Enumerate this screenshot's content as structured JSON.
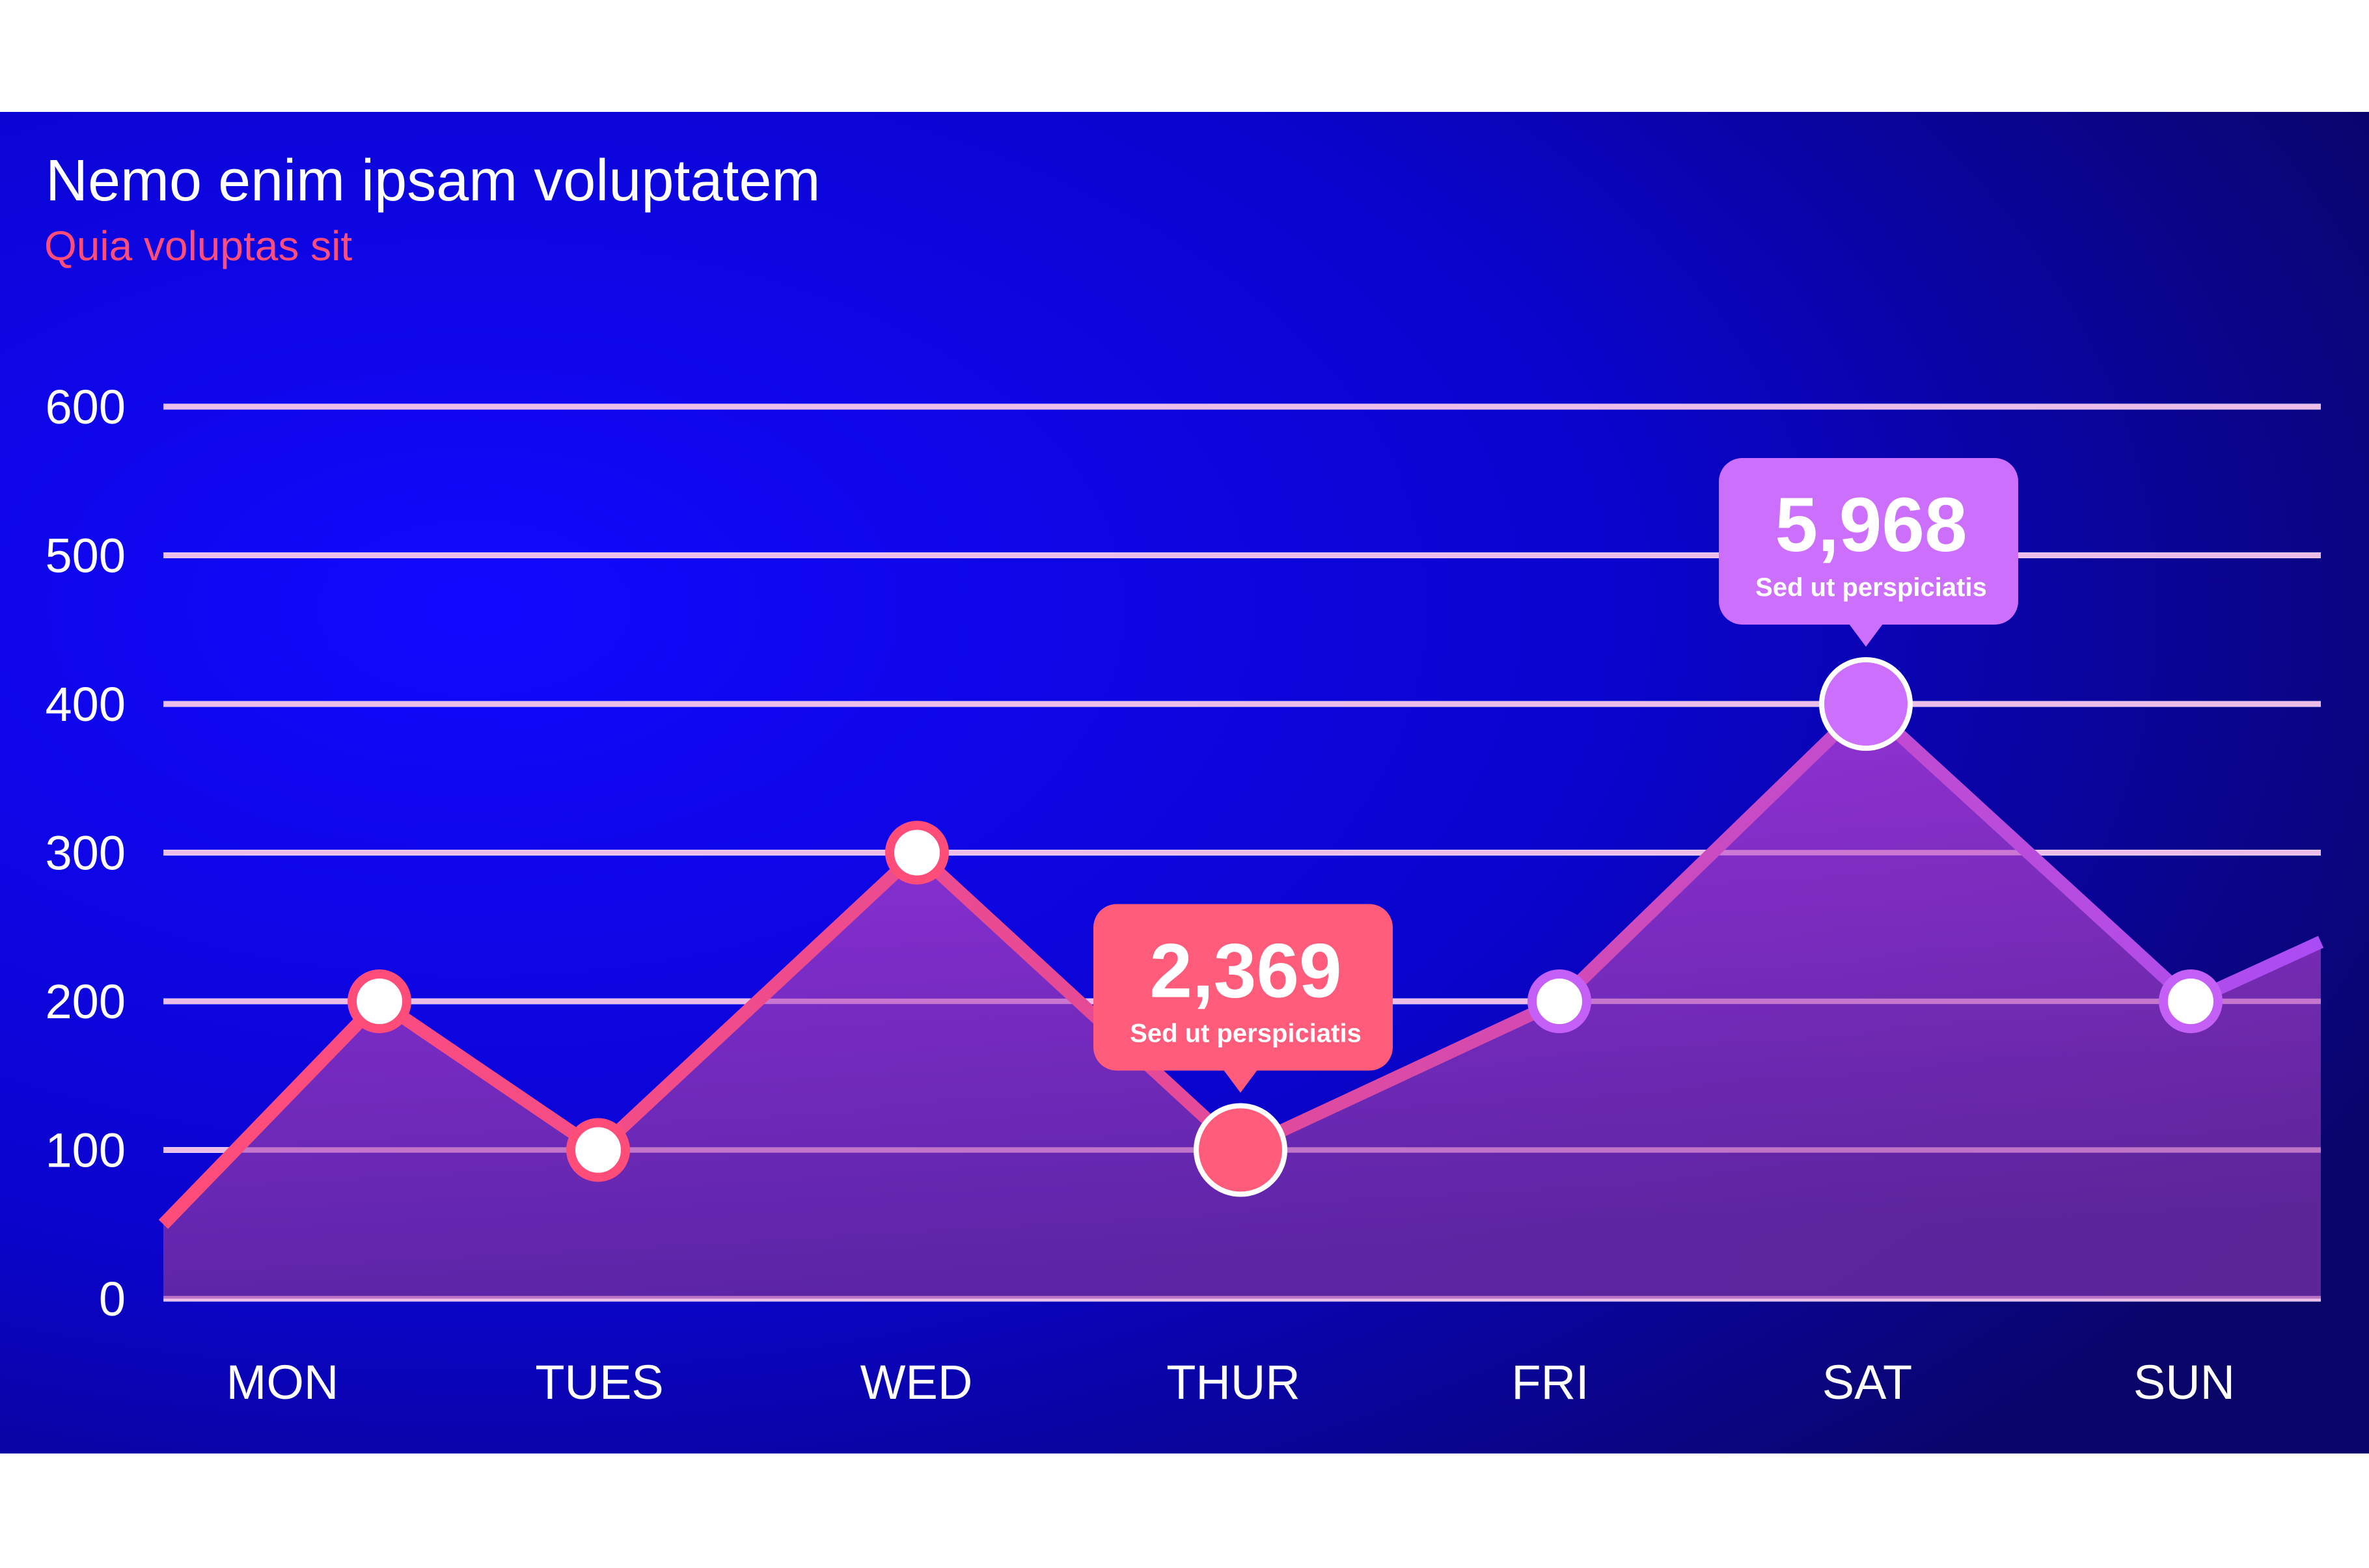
{
  "chart_data": {
    "type": "line",
    "title": "Nemo enim ipsam voluptatem",
    "subtitle": "Quia voluptas sit",
    "categories": [
      "MON",
      "TUES",
      "WED",
      "THUR",
      "FRI",
      "SAT",
      "SUN"
    ],
    "values": [
      200,
      100,
      300,
      100,
      200,
      400,
      200
    ],
    "line_start_value": 50,
    "line_end_value": 240,
    "ylim": [
      0,
      600
    ],
    "yticks": [
      "0",
      "100",
      "200",
      "300",
      "400",
      "500",
      "600"
    ],
    "grid": true,
    "area_fill": true,
    "annotations": [
      {
        "category": "THUR",
        "value": "2,369",
        "label": "Sed ut perspiciatis",
        "color": "#ff5c7c"
      },
      {
        "category": "SAT",
        "value": "5,968",
        "label": "Sed ut perspiciatis",
        "color": "#cc6ffd"
      }
    ]
  },
  "colors": {
    "background_center": "#1208ff",
    "background_edge": "#0a0568",
    "line_start": "#ff4d7a",
    "line_end": "#aa4cf5",
    "subtitle": "#ff4d7a",
    "grid": "#e6e8ff"
  }
}
